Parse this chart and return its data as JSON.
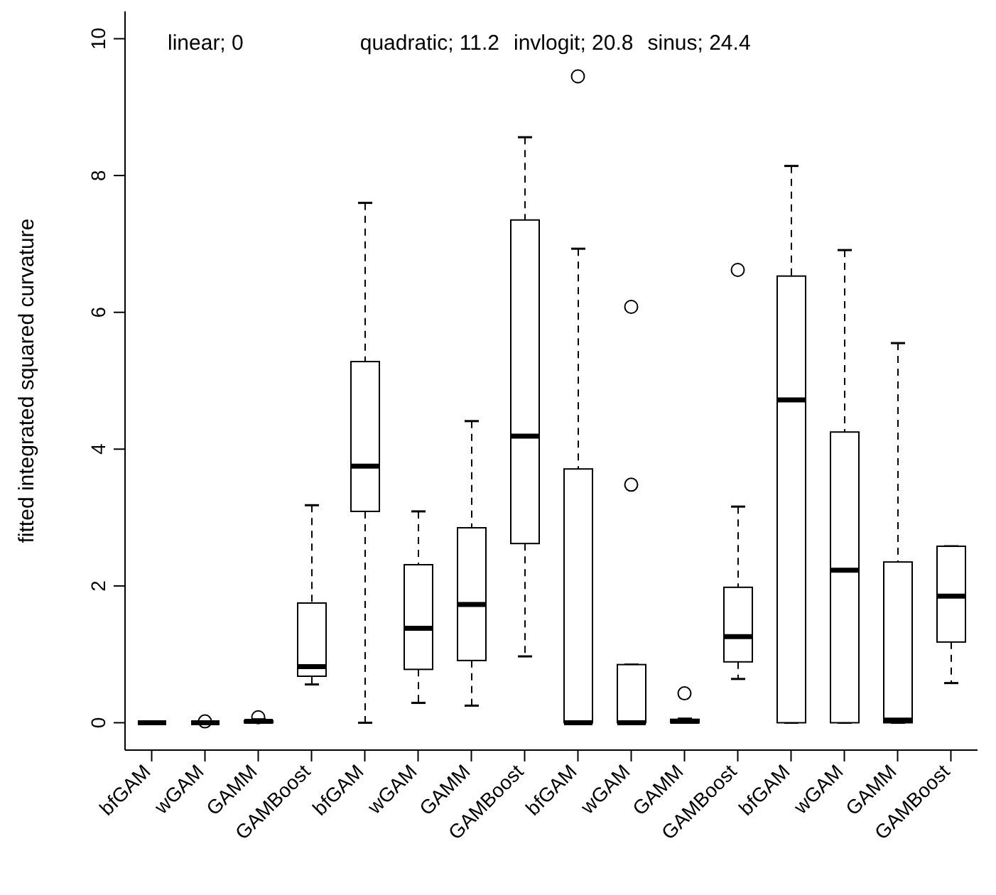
{
  "chart_data": {
    "type": "box",
    "ylabel": "fitted integrated squared curvature",
    "annotations": [
      "linear; 0",
      "quadratic; 11.2",
      "invlogit; 20.8",
      "sinus; 24.4"
    ],
    "categories": [
      "bfGAM",
      "wGAM",
      "GAMM",
      "GAMBoost",
      "bfGAM",
      "wGAM",
      "GAMM",
      "GAMBoost",
      "bfGAM",
      "wGAM",
      "GAMM",
      "GAMBoost",
      "bfGAM",
      "wGAM",
      "GAMM",
      "GAMBoost"
    ],
    "boxes": [
      {
        "low": 0,
        "q1": 0,
        "median": 0,
        "q3": 0,
        "high": 0
      },
      {
        "low": 0,
        "q1": 0,
        "median": 0,
        "q3": 0,
        "high": 0,
        "outliers": [
          0.02
        ]
      },
      {
        "low": 0,
        "q1": 0,
        "median": 0.02,
        "q3": 0.03,
        "high": 0.05,
        "outliers": [
          0.08
        ]
      },
      {
        "low": 0.56,
        "q1": 0.68,
        "median": 0.82,
        "q3": 1.75,
        "high": 3.18
      },
      {
        "low": 0,
        "q1": 3.09,
        "median": 3.75,
        "q3": 5.28,
        "high": 7.6
      },
      {
        "low": 0.29,
        "q1": 0.78,
        "median": 1.38,
        "q3": 2.31,
        "high": 3.09
      },
      {
        "low": 0.25,
        "q1": 0.91,
        "median": 1.73,
        "q3": 2.85,
        "high": 4.41
      },
      {
        "low": 0.97,
        "q1": 2.62,
        "median": 4.19,
        "q3": 7.35,
        "high": 8.56
      },
      {
        "low": 0,
        "q1": 0,
        "median": 0,
        "q3": 3.71,
        "high": 6.93,
        "outliers": [
          9.45
        ]
      },
      {
        "low": 0,
        "q1": 0,
        "median": 0,
        "q3": 0.85,
        "high": 0.85,
        "outliers": [
          6.08,
          3.48
        ]
      },
      {
        "low": 0,
        "q1": 0,
        "median": 0.02,
        "q3": 0.05,
        "high": 0.06,
        "outliers": [
          0.43
        ]
      },
      {
        "low": 0.64,
        "q1": 0.89,
        "median": 1.26,
        "q3": 1.98,
        "high": 3.16,
        "outliers": [
          6.62
        ]
      },
      {
        "low": 0,
        "q1": 0,
        "median": 4.72,
        "q3": 6.53,
        "high": 8.14
      },
      {
        "low": 0,
        "q1": 0,
        "median": 2.23,
        "q3": 4.25,
        "high": 6.91
      },
      {
        "low": 0,
        "q1": 0,
        "median": 0.04,
        "q3": 2.35,
        "high": 5.55
      },
      {
        "low": 0.58,
        "q1": 1.18,
        "median": 1.85,
        "q3": 2.58,
        "high": 2.58
      }
    ],
    "ylim": [
      -0.4,
      10.4
    ],
    "yticks": [
      0,
      2,
      4,
      6,
      8,
      10
    ]
  }
}
